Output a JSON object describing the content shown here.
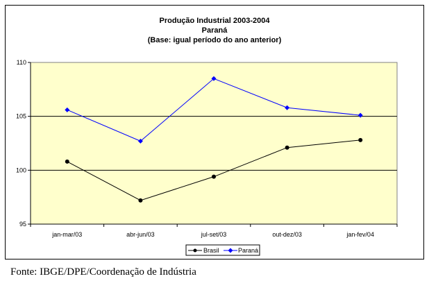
{
  "chart_data": {
    "type": "line",
    "title_lines": [
      "Produção Industrial 2003-2004",
      "Paraná",
      "(Base: igual período do ano anterior)"
    ],
    "categories": [
      "jan-mar/03",
      "abr-jun/03",
      "jul-set/03",
      "out-dez/03",
      "jan-fev/04"
    ],
    "series": [
      {
        "name": "Brasil",
        "values": [
          100.8,
          97.2,
          99.4,
          102.1,
          102.8
        ],
        "color": "#000000",
        "marker": "circle"
      },
      {
        "name": "Paraná",
        "values": [
          105.6,
          102.7,
          108.5,
          105.8,
          105.1
        ],
        "color": "#0000ff",
        "marker": "diamond"
      }
    ],
    "ylim": [
      95,
      110
    ],
    "yticks": [
      "95",
      "100",
      "105",
      "110"
    ],
    "plot_background": "#ffffcc",
    "gridlines": true,
    "legend_position": "bottom"
  },
  "source_note": "Fonte: IBGE/DPE/Coordenação de Indústria"
}
